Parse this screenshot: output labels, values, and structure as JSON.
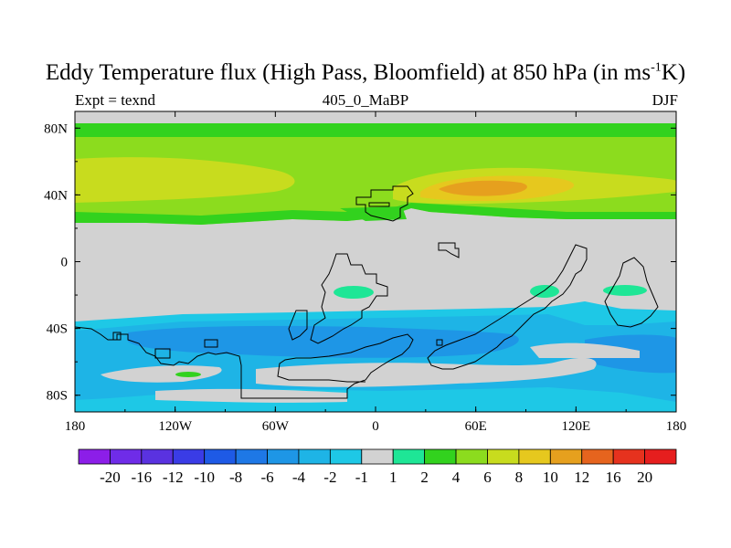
{
  "title_main": "Eddy Temperature flux (High Pass, Bloomfield) at 850 hPa (in ms",
  "title_sup": "-1",
  "title_end": "K)",
  "left_subtitle": "Expt = texnd",
  "center_subtitle": "405_0_MaBP",
  "right_subtitle": "DJF",
  "chart_data": {
    "type": "heatmap",
    "field": "Eddy Temperature flux (High Pass, Bloomfield) at 850 hPa",
    "units": "ms-1K",
    "season": "DJF",
    "experiment": "texnd",
    "xlim": [
      -180,
      180
    ],
    "ylim": [
      -90,
      90
    ],
    "x_ticks": [
      {
        "value": -180,
        "label": "180"
      },
      {
        "value": -120,
        "label": "120W"
      },
      {
        "value": -60,
        "label": "60W"
      },
      {
        "value": 0,
        "label": "0"
      },
      {
        "value": 60,
        "label": "60E"
      },
      {
        "value": 120,
        "label": "120E"
      },
      {
        "value": 180,
        "label": "180"
      }
    ],
    "y_ticks": [
      {
        "value": 80,
        "label": "80N"
      },
      {
        "value": 40,
        "label": "40N"
      },
      {
        "value": 0,
        "label": "0"
      },
      {
        "value": -40,
        "label": "40S"
      },
      {
        "value": -80,
        "label": "80S"
      }
    ],
    "colorbar": {
      "labels": [
        "-20",
        "-16",
        "-12",
        "-10",
        "-8",
        "-6",
        "-4",
        "-2",
        "-1",
        "1",
        "2",
        "4",
        "6",
        "8",
        "10",
        "12",
        "16",
        "20"
      ],
      "colors": [
        "#8c1ee8",
        "#6f2ce8",
        "#5a32e0",
        "#3a3ce6",
        "#1e5ae6",
        "#1e78e6",
        "#1e96e6",
        "#1eb4e6",
        "#1ec8e6",
        "#d2d2d2",
        "#1ee696",
        "#32d21e",
        "#8cdc1e",
        "#c8dc1e",
        "#e6c81e",
        "#e6a01e",
        "#e6641e",
        "#e6321e",
        "#e61e1e"
      ]
    },
    "regions": [
      {
        "level": "4 to 6",
        "color": "#8cdc1e",
        "lon": [
          -180,
          180
        ],
        "lat": [
          31,
          84
        ]
      },
      {
        "level": "6 to 8",
        "color": "#c8dc1e",
        "lon": [
          -180,
          -40
        ],
        "lat": [
          41,
          60
        ]
      },
      {
        "level": "8 to 10",
        "color": "#e6c81e",
        "lon": [
          35,
          100
        ],
        "lat": [
          40,
          53
        ]
      },
      {
        "level": "10 to 12",
        "color": "#e6a01e",
        "lon": [
          50,
          80
        ],
        "lat": [
          42,
          50
        ]
      },
      {
        "level": "2 to 4",
        "color": "#32d21e",
        "lon": [
          -20,
          40
        ],
        "lat": [
          31,
          44
        ]
      },
      {
        "level": "1 to 2",
        "color": "#1ee696",
        "lon": [
          -25,
          0
        ],
        "lat": [
          -23,
          -16
        ]
      },
      {
        "level": "1 to 2",
        "color": "#1ee696",
        "lon": [
          93,
          105
        ],
        "lat": [
          -23,
          -16
        ]
      },
      {
        "level": "1 to 2",
        "color": "#1ee696",
        "lon": [
          137,
          162
        ],
        "lat": [
          -21,
          -16
        ]
      },
      {
        "level": "1 to 2",
        "color": "#1ee696",
        "lon": [
          -113,
          -98
        ],
        "lat": [
          -69,
          -67
        ]
      },
      {
        "level": "-2 to -1",
        "color": "#1ec8e6",
        "lon": [
          -180,
          180
        ],
        "lat": [
          -90,
          -32
        ]
      },
      {
        "level": "-4 to -2",
        "color": "#1eb4e6",
        "lon": [
          -180,
          160
        ],
        "lat": [
          -80,
          -37
        ]
      },
      {
        "level": "-6 to -4",
        "color": "#1e96e6",
        "lon": [
          -160,
          60
        ],
        "lat": [
          -57,
          -40
        ]
      }
    ]
  }
}
